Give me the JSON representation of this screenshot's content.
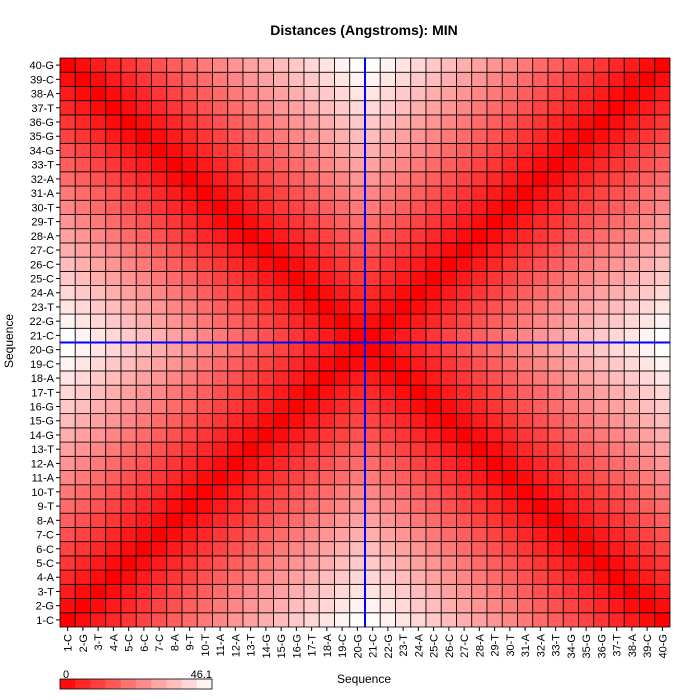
{
  "chart_data": {
    "type": "heatmap",
    "title": "Distances (Angstroms):  MIN",
    "xlabel": "Sequence",
    "ylabel": "Sequence",
    "labels": [
      "1-C",
      "2-G",
      "3-T",
      "4-A",
      "5-C",
      "6-C",
      "7-C",
      "8-A",
      "9-T",
      "10-T",
      "11-A",
      "12-A",
      "13-T",
      "14-G",
      "15-G",
      "16-G",
      "17-T",
      "18-A",
      "19-C",
      "20-G",
      "21-C",
      "22-G",
      "23-T",
      "24-A",
      "25-C",
      "26-C",
      "27-C",
      "28-A",
      "29-T",
      "30-T",
      "31-A",
      "32-A",
      "33-T",
      "34-G",
      "35-G",
      "36-G",
      "37-T",
      "38-A",
      "39-C",
      "40-G"
    ],
    "scale": {
      "min": 0,
      "max": 46.1,
      "min_label": "0",
      "max_label": "46.1",
      "low_color": "#ff0000",
      "high_color": "#ffffff"
    },
    "distance_model": "fold-back hairpin: strand 1 (1-20) paired antiparallel with strand 2 (21-40); d(i,j) ≈ 46.1 × min(|i-j|, |i+j-41|) / 19 approximately",
    "crosshair": {
      "x_label": "20-G",
      "y_label": "20-G",
      "color": "#0000ff"
    },
    "grid": true,
    "legend": "bottom-left"
  }
}
